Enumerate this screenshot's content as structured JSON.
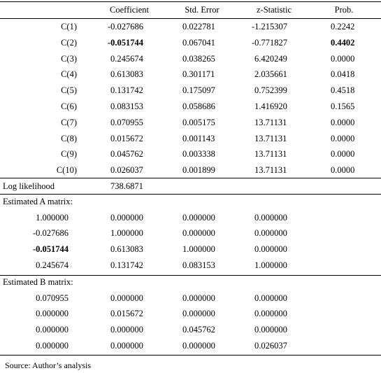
{
  "header": [
    "",
    "Coefficient",
    "Std. Error",
    "z-Statistic",
    "Prob."
  ],
  "coefficients": [
    {
      "label": "C(1)",
      "coef": "-0.027686",
      "se": "0.022781",
      "z": "-1.215307",
      "p": "0.2242",
      "bold": false
    },
    {
      "label": "C(2)",
      "coef": "-0.051744",
      "se": "0.067041",
      "z": "-0.771827",
      "p": "0.4402",
      "bold": true
    },
    {
      "label": "C(3)",
      "coef": "0.245674",
      "se": "0.038265",
      "z": "6.420249",
      "p": "0.0000",
      "bold": false
    },
    {
      "label": "C(4)",
      "coef": "0.613083",
      "se": "0.301171",
      "z": "2.035661",
      "p": "0.0418",
      "bold": false
    },
    {
      "label": "C(5)",
      "coef": "0.131742",
      "se": "0.175097",
      "z": "0.752399",
      "p": "0.4518",
      "bold": false
    },
    {
      "label": "C(6)",
      "coef": "0.083153",
      "se": "0.058686",
      "z": "1.416920",
      "p": "0.1565",
      "bold": false
    },
    {
      "label": "C(7)",
      "coef": "0.070955",
      "se": "0.005175",
      "z": "13.71131",
      "p": "0.0000",
      "bold": false
    },
    {
      "label": "C(8)",
      "coef": "0.015672",
      "se": "0.001143",
      "z": "13.71131",
      "p": "0.0000",
      "bold": false
    },
    {
      "label": "C(9)",
      "coef": "0.045762",
      "se": "0.003338",
      "z": "13.71131",
      "p": "0.0000",
      "bold": false
    },
    {
      "label": "C(10)",
      "coef": "0.026037",
      "se": "0.001899",
      "z": "13.71131",
      "p": "0.0000",
      "bold": false
    }
  ],
  "log_likelihood": {
    "label": "Log likelihood",
    "value": "738.6871"
  },
  "matrix_a": {
    "title": "Estimated A matrix:",
    "rows": [
      [
        {
          "v": "1.000000"
        },
        {
          "v": "0.000000"
        },
        {
          "v": "0.000000"
        },
        {
          "v": "0.000000"
        }
      ],
      [
        {
          "v": "-0.027686"
        },
        {
          "v": "1.000000"
        },
        {
          "v": "0.000000"
        },
        {
          "v": "0.000000"
        }
      ],
      [
        {
          "v": "-0.051744",
          "bold": true
        },
        {
          "v": "0.613083"
        },
        {
          "v": "1.000000"
        },
        {
          "v": "0.000000"
        }
      ],
      [
        {
          "v": "0.245674"
        },
        {
          "v": "0.131742"
        },
        {
          "v": "0.083153"
        },
        {
          "v": "1.000000"
        }
      ]
    ]
  },
  "matrix_b": {
    "title": "Estimated B matrix:",
    "rows": [
      [
        {
          "v": "0.070955"
        },
        {
          "v": "0.000000"
        },
        {
          "v": "0.000000"
        },
        {
          "v": "0.000000"
        }
      ],
      [
        {
          "v": "0.000000"
        },
        {
          "v": "0.015672"
        },
        {
          "v": "0.000000"
        },
        {
          "v": "0.000000"
        }
      ],
      [
        {
          "v": "0.000000"
        },
        {
          "v": "0.000000"
        },
        {
          "v": "0.045762"
        },
        {
          "v": "0.000000"
        }
      ],
      [
        {
          "v": "0.000000"
        },
        {
          "v": "0.000000"
        },
        {
          "v": "0.000000"
        },
        {
          "v": "0.026037"
        }
      ]
    ]
  },
  "source": "Source: Author’s analysis"
}
